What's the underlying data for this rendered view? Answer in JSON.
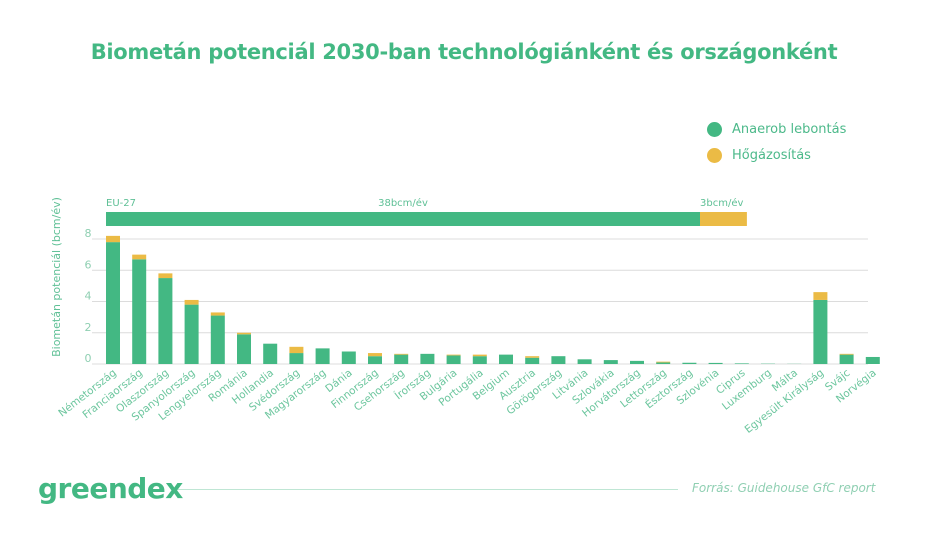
{
  "title": "Biometán potenciál 2030-ban technológiánként és országonként",
  "legend": [
    {
      "label": "Anaerob lebontás",
      "color": "#43b883"
    },
    {
      "label": "Hőgázosítás",
      "color": "#ebbb45"
    }
  ],
  "footer": {
    "logo": "greendex",
    "source": "Forrás: Guidehouse GfC report"
  },
  "chart_data": {
    "type": "bar",
    "stacked": true,
    "title": "Biometán potenciál 2030-ban technológiánként és országonként",
    "xlabel": "",
    "ylabel": "Biometán potenciál (bcm/év)",
    "ylim": [
      0,
      8
    ],
    "yticks": [
      0,
      2,
      4,
      6,
      8
    ],
    "grid": true,
    "legend_position": "top-right",
    "categories": [
      "Németország",
      "Franciaország",
      "Olaszország",
      "Spanyolország",
      "Lengyelország",
      "Románia",
      "Hollandia",
      "Svédország",
      "Magyarország",
      "Dánia",
      "Finnország",
      "Csehország",
      "Írország",
      "Bulgária",
      "Portugália",
      "Belgium",
      "Ausztria",
      "Görögország",
      "Litvánia",
      "Szlovákia",
      "Horvátország",
      "Lettország",
      "Észtország",
      "Szlovénia",
      "Ciprus",
      "Luxemburg",
      "Málta",
      "Egyesült Királyság",
      "Svájc",
      "Norvégia"
    ],
    "series": [
      {
        "name": "Anaerob lebontás",
        "color": "#43b883",
        "values": [
          7.8,
          6.7,
          5.5,
          3.8,
          3.1,
          1.9,
          1.3,
          0.7,
          1.0,
          0.8,
          0.5,
          0.6,
          0.65,
          0.55,
          0.5,
          0.6,
          0.4,
          0.5,
          0.3,
          0.25,
          0.2,
          0.1,
          0.08,
          0.07,
          0.04,
          0.02,
          0.01,
          4.1,
          0.6,
          0.45
        ]
      },
      {
        "name": "Hőgázosítás",
        "color": "#ebbb45",
        "values": [
          0.4,
          0.3,
          0.3,
          0.3,
          0.2,
          0.1,
          0.0,
          0.4,
          0.0,
          0.0,
          0.2,
          0.05,
          0.0,
          0.05,
          0.1,
          0.0,
          0.1,
          0.0,
          0.0,
          0.0,
          0.0,
          0.05,
          0.0,
          0.0,
          0.0,
          0.0,
          0.0,
          0.5,
          0.05,
          0.0
        ]
      }
    ],
    "eu_total": {
      "label": "EU-27",
      "segments": [
        {
          "name": "Anaerob lebontás",
          "value": 38,
          "label": "38bcm/év",
          "color": "#43b883"
        },
        {
          "name": "Hőgázosítás",
          "value": 3,
          "label": "3bcm/év",
          "color": "#ebbb45"
        }
      ]
    }
  }
}
